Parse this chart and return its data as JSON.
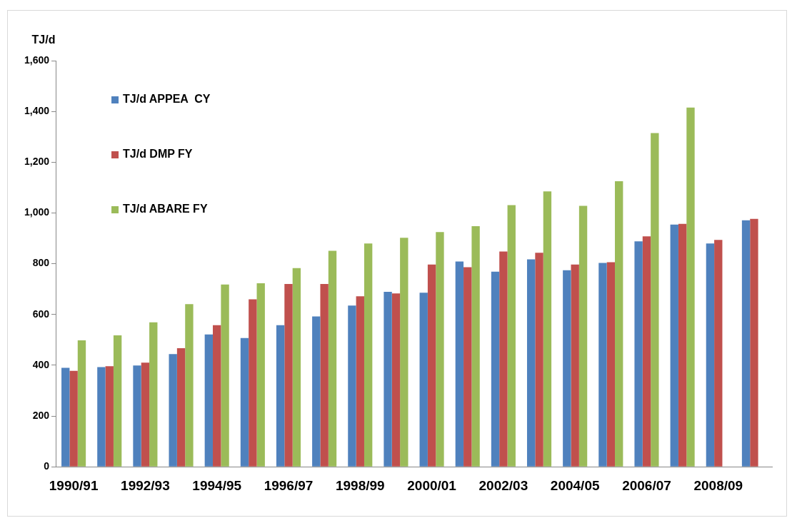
{
  "chart_data": {
    "type": "bar",
    "ylabel": "TJ/d",
    "categories": [
      "1990/91",
      null,
      "1992/93",
      null,
      "1994/95",
      null,
      "1996/97",
      null,
      "1998/99",
      null,
      "2000/01",
      null,
      "2002/03",
      null,
      "2004/05",
      null,
      "2006/07",
      null,
      "2008/09",
      null
    ],
    "series": [
      {
        "name": "TJ/d APPEA  CY",
        "color": "#4f81bd",
        "values": [
          390,
          393,
          399,
          444,
          521,
          507,
          558,
          592,
          635,
          689,
          686,
          809,
          769,
          817,
          774,
          803,
          888,
          954,
          880,
          971
        ]
      },
      {
        "name": "TJ/d DMP FY",
        "color": "#c0504d",
        "values": [
          378,
          396,
          410,
          467,
          558,
          660,
          720,
          720,
          672,
          683,
          797,
          786,
          848,
          843,
          797,
          806,
          908,
          957,
          894,
          977
        ]
      },
      {
        "name": "TJ/d ABARE FY",
        "color": "#9bbb59",
        "values": [
          498,
          518,
          569,
          641,
          718,
          723,
          783,
          851,
          880,
          902,
          925,
          948,
          1031,
          1085,
          1028,
          1125,
          1315,
          1415,
          null,
          null
        ]
      }
    ],
    "ylim": [
      0,
      1600
    ],
    "yticks": [
      0,
      200,
      400,
      600,
      800,
      {
        "value": 1000,
        "label": "1,000"
      },
      {
        "value": 1200,
        "label": "1,200"
      },
      {
        "value": 1400,
        "label": "1,400"
      },
      {
        "value": 1600,
        "label": "1,600"
      }
    ],
    "grid": false,
    "legend": "top left"
  }
}
